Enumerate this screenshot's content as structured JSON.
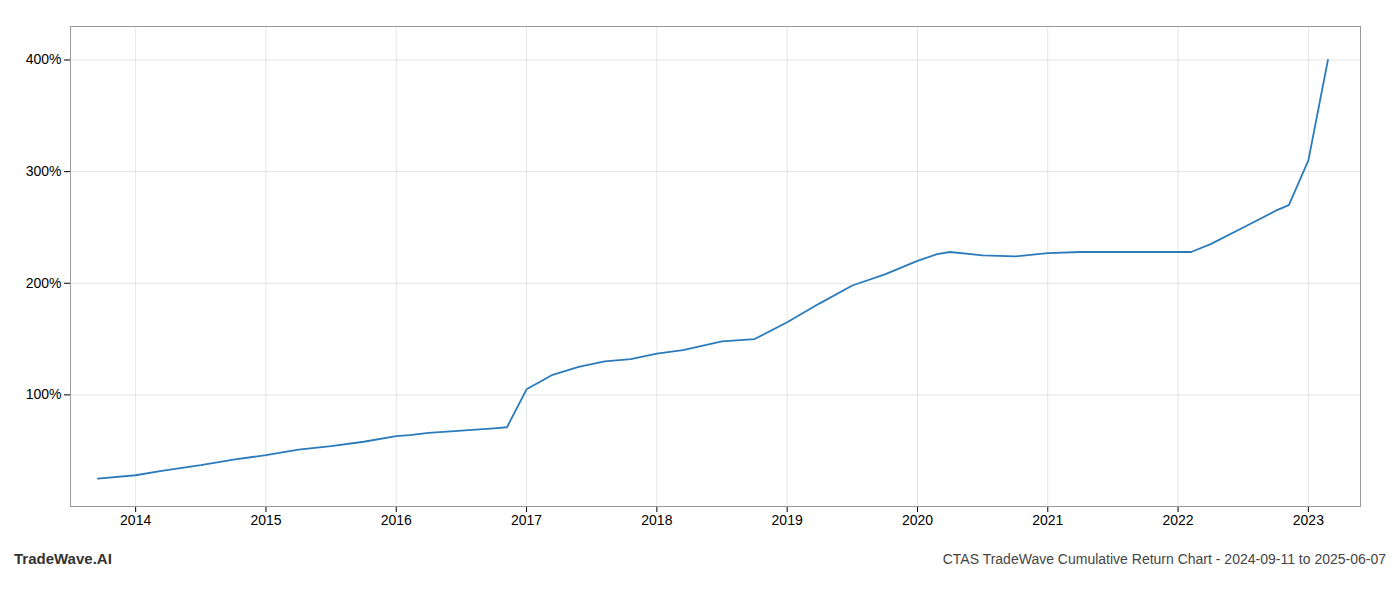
{
  "chart_data": {
    "type": "line",
    "title": "CTAS TradeWave Cumulative Return Chart - 2024-09-11 to 2025-06-07",
    "annotations": [
      "TradeWave.AI"
    ],
    "x": [
      2013.71,
      2014.0,
      2014.2,
      2014.5,
      2014.75,
      2015.0,
      2015.25,
      2015.5,
      2015.75,
      2016.0,
      2016.1,
      2016.25,
      2016.5,
      2016.75,
      2016.85,
      2017.0,
      2017.2,
      2017.4,
      2017.6,
      2017.8,
      2018.0,
      2018.2,
      2018.5,
      2018.75,
      2019.0,
      2019.25,
      2019.5,
      2019.75,
      2020.0,
      2020.15,
      2020.25,
      2020.5,
      2020.75,
      2021.0,
      2021.25,
      2021.5,
      2021.75,
      2022.0,
      2022.1,
      2022.25,
      2022.5,
      2022.75,
      2022.85,
      2023.0,
      2023.15
    ],
    "values": [
      25,
      28,
      32,
      37,
      42,
      46,
      51,
      54,
      58,
      63,
      64,
      66,
      68,
      70,
      71,
      105,
      118,
      125,
      130,
      132,
      137,
      140,
      148,
      150,
      165,
      182,
      198,
      208,
      220,
      226,
      228,
      225,
      224,
      227,
      228,
      228,
      228,
      228,
      228,
      235,
      250,
      265,
      270,
      310,
      400
    ],
    "color": "#2b7bba",
    "xlim": [
      2013.5,
      2023.4
    ],
    "xticks": [
      2014,
      2015,
      2016,
      2017,
      2018,
      2019,
      2020,
      2021,
      2022,
      2023
    ],
    "ylim": [
      0,
      430
    ],
    "yticks": [
      {
        "value": 100,
        "label": "100%"
      },
      {
        "value": 200,
        "label": "200%"
      },
      {
        "value": 300,
        "label": "300%"
      },
      {
        "value": 400,
        "label": "400%"
      }
    ],
    "grid": true
  }
}
